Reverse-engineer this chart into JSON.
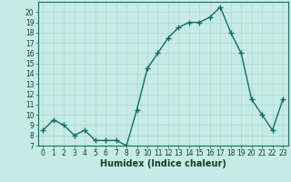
{
  "title": "",
  "xlabel": "Humidex (Indice chaleur)",
  "ylabel": "",
  "x": [
    0,
    1,
    2,
    3,
    4,
    5,
    6,
    7,
    8,
    9,
    10,
    11,
    12,
    13,
    14,
    15,
    16,
    17,
    18,
    19,
    20,
    21,
    22,
    23
  ],
  "y": [
    8.5,
    9.5,
    9.0,
    8.0,
    8.5,
    7.5,
    7.5,
    7.5,
    7.0,
    10.5,
    14.5,
    16.0,
    17.5,
    18.5,
    19.0,
    19.0,
    19.5,
    20.5,
    18.0,
    16.0,
    11.5,
    10.0,
    8.5,
    11.5
  ],
  "line_color": "#1a6b5a",
  "marker": "+",
  "marker_size": 4,
  "bg_color": "#c5ece4",
  "grid_color": "#b0d8cf",
  "ylim": [
    7,
    21
  ],
  "xlim": [
    -0.5,
    23.5
  ],
  "yticks": [
    7,
    8,
    9,
    10,
    11,
    12,
    13,
    14,
    15,
    16,
    17,
    18,
    19,
    20
  ],
  "xticks": [
    0,
    1,
    2,
    3,
    4,
    5,
    6,
    7,
    8,
    9,
    10,
    11,
    12,
    13,
    14,
    15,
    16,
    17,
    18,
    19,
    20,
    21,
    22,
    23
  ],
  "tick_label_fontsize": 5.5,
  "xlabel_fontsize": 7,
  "line_width": 1.0
}
